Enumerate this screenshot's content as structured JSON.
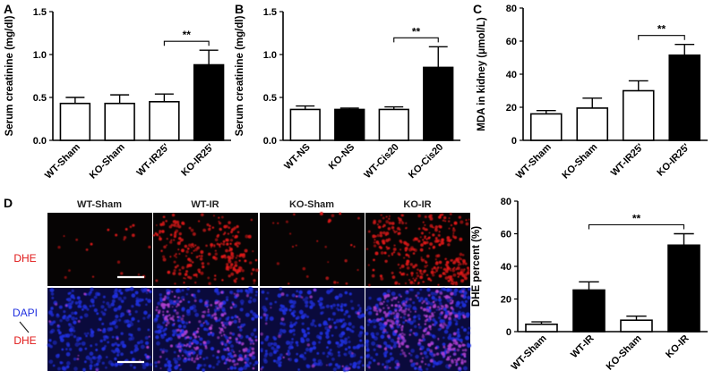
{
  "panels": {
    "A": "A",
    "B": "B",
    "C": "C",
    "D": "D"
  },
  "colors": {
    "black": "#000000",
    "white": "#ffffff",
    "dhe_red": "#e01818",
    "dapi_blue": "#2030e0",
    "merge_magenta": "#b040d0"
  },
  "micrographs": {
    "columns": [
      "WT-Sham",
      "WT-IR",
      "KO-Sham",
      "KO-IR"
    ],
    "row_dhe": "DHE",
    "row_merge_top": "DAPI",
    "row_merge_bottom": "DHE"
  },
  "chart_data": [
    {
      "panel": "A",
      "type": "bar",
      "ylabel": "Serum creatinine (mg/dl)",
      "categories": [
        "WT-Sham",
        "KO-Sham",
        "WT-IR25'",
        "KO-IR25'"
      ],
      "values": [
        0.43,
        0.43,
        0.45,
        0.88
      ],
      "errors": [
        0.07,
        0.1,
        0.09,
        0.17
      ],
      "fills": [
        "white",
        "white",
        "white",
        "black"
      ],
      "ylim": [
        0,
        1.5
      ],
      "yticks": [
        "0.0",
        "0.5",
        "1.0",
        "1.5"
      ],
      "significance": {
        "from": 2,
        "to": 3,
        "label": "**"
      }
    },
    {
      "panel": "B",
      "type": "bar",
      "ylabel": "Serum creatinine (mg/dl)",
      "categories": [
        "WT-NS",
        "KO-NS",
        "WT-Cis20",
        "KO-Cis20"
      ],
      "values": [
        0.36,
        0.36,
        0.36,
        0.85
      ],
      "errors": [
        0.04,
        0.015,
        0.03,
        0.24
      ],
      "fills": [
        "white",
        "black",
        "white",
        "black"
      ],
      "ylim": [
        0,
        1.5
      ],
      "yticks": [
        "0.0",
        "0.5",
        "1.0",
        "1.5"
      ],
      "significance": {
        "from": 2,
        "to": 3,
        "label": "**"
      }
    },
    {
      "panel": "C",
      "type": "bar",
      "ylabel": "MDA in kidney (μmol/L)",
      "categories": [
        "WT-Sham",
        "KO-Sham",
        "WT-IR25'",
        "KO-IR25'"
      ],
      "values": [
        16,
        19.5,
        30,
        51.5
      ],
      "errors": [
        2,
        6,
        6,
        6.5
      ],
      "fills": [
        "white",
        "white",
        "white",
        "black"
      ],
      "ylim": [
        0,
        80
      ],
      "yticks": [
        "0",
        "20",
        "40",
        "60",
        "80"
      ],
      "significance": {
        "from": 2,
        "to": 3,
        "label": "**"
      }
    },
    {
      "panel": "D",
      "type": "bar",
      "ylabel": "DHE percent (%)",
      "categories": [
        "WT-Sham",
        "WT-IR",
        "KO-Sham",
        "KO-IR"
      ],
      "values": [
        4.5,
        25.5,
        7,
        53
      ],
      "errors": [
        1.5,
        5,
        2.5,
        7
      ],
      "fills": [
        "white",
        "black",
        "white",
        "black"
      ],
      "ylim": [
        0,
        80
      ],
      "yticks": [
        "0",
        "20",
        "40",
        "60",
        "80"
      ],
      "significance": {
        "from": 1,
        "to": 3,
        "label": "**"
      }
    }
  ]
}
